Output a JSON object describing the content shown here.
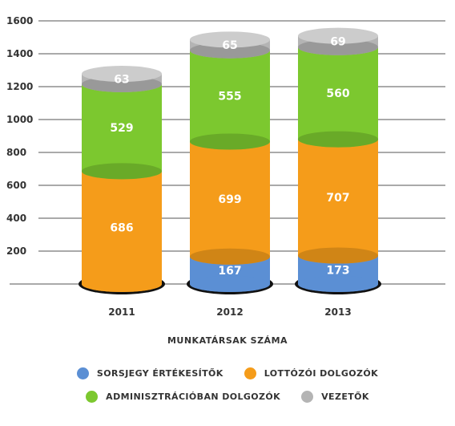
{
  "chart_data": {
    "type": "bar",
    "stacked": true,
    "xlabel": "MUNKATÁRSAK SZÁMA",
    "ylabel": "",
    "categories": [
      "2011",
      "2012",
      "2013"
    ],
    "ylim": [
      0,
      1600
    ],
    "yticks": [
      200,
      400,
      600,
      800,
      1000,
      1200,
      1400,
      1600
    ],
    "grid": true,
    "legend_position": "bottom",
    "series": [
      {
        "name": "SORSJEGY ÉRTÉKESÍTŐK",
        "color": "#5b8fd4",
        "values": [
          0,
          167,
          173
        ],
        "labels": [
          "",
          "167",
          "173"
        ]
      },
      {
        "name": "LOTTÓZÓI DOLGOZÓK",
        "color": "#f59c1a",
        "values": [
          686,
          699,
          707
        ],
        "labels": [
          "686",
          "699",
          "707"
        ]
      },
      {
        "name": "ADMINISZTRÁCIÓBAN DOLGOZÓK",
        "color": "#7cc82f",
        "values": [
          529,
          555,
          560
        ],
        "labels": [
          "529",
          "555",
          "560"
        ]
      },
      {
        "name": "VEZETŐK",
        "color": "#b4b4b4",
        "values": [
          63,
          65,
          69
        ],
        "labels": [
          "63",
          "65",
          "69"
        ]
      }
    ]
  }
}
